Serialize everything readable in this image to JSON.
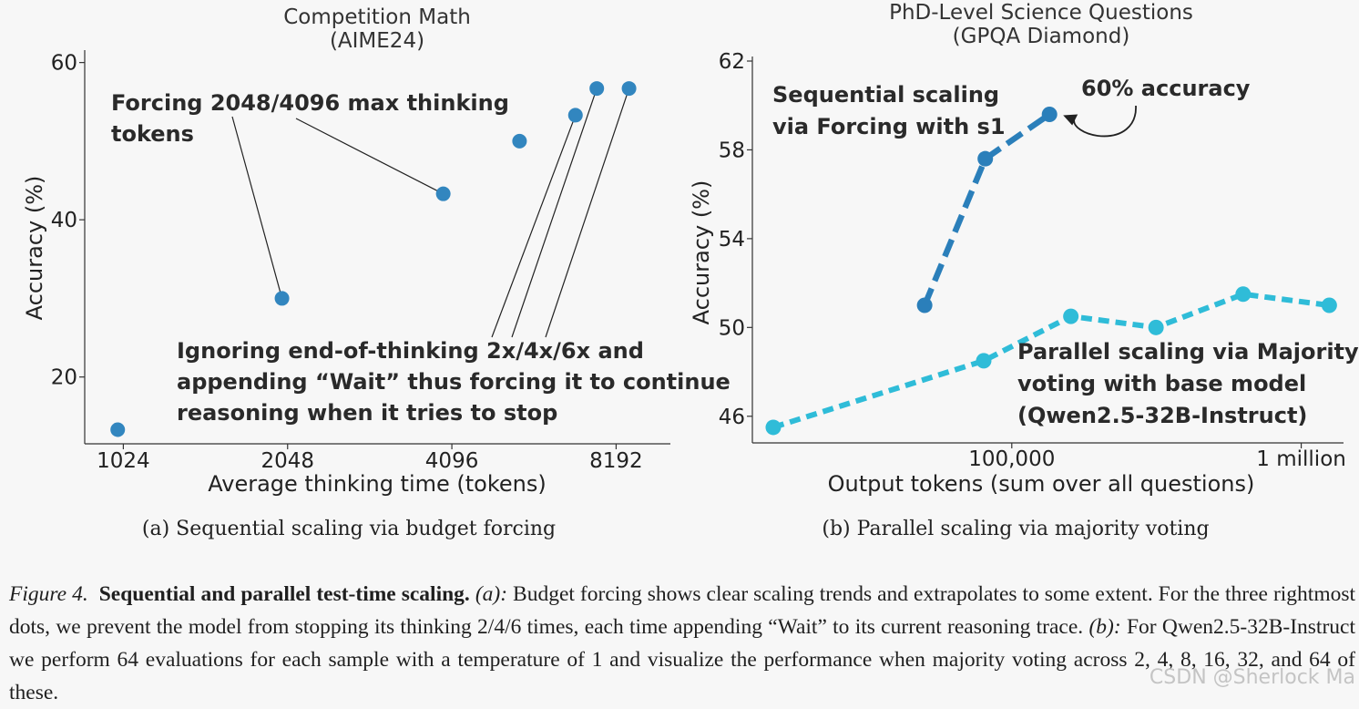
{
  "chart_data": [
    {
      "type": "scatter",
      "title": [
        "Competition Math",
        "(AIME24)"
      ],
      "xlabel": "Average thinking time (tokens)",
      "ylabel": "Accuracy (%)",
      "x_scale": "log2",
      "xlim": [
        870,
        10300
      ],
      "ylim": [
        11.5,
        61
      ],
      "xticks": [
        1024,
        2048,
        4096,
        8192
      ],
      "xtick_labels": [
        "1024",
        "2048",
        "4096",
        "8192"
      ],
      "yticks": [
        20,
        40,
        60
      ],
      "ytick_labels": [
        "20",
        "40",
        "60"
      ],
      "color": "#3286bf",
      "points": [
        {
          "x": 1000,
          "y": 13.3
        },
        {
          "x": 2000,
          "y": 30.0
        },
        {
          "x": 3950,
          "y": 43.3
        },
        {
          "x": 5450,
          "y": 50.0
        },
        {
          "x": 6900,
          "y": 53.3
        },
        {
          "x": 7550,
          "y": 56.7
        },
        {
          "x": 8650,
          "y": 56.7
        }
      ],
      "annotations": [
        {
          "lines": [
            "Forcing 2048/4096 max thinking",
            "tokens"
          ],
          "points": [
            1,
            2
          ]
        },
        {
          "lines": [
            "Ignoring end-of-thinking 2x/4x/6x and",
            "appending “Wait” thus forcing it to continue",
            "reasoning when it tries to stop"
          ],
          "points": [
            4,
            5,
            6
          ]
        }
      ],
      "subcaption": "(a)  Sequential scaling via budget forcing"
    },
    {
      "type": "line",
      "title": [
        "PhD-Level Science Questions",
        "(GPQA Diamond)"
      ],
      "xlabel": "Output tokens (sum over all questions)",
      "ylabel": "Accuracy (%)",
      "x_scale": "log10",
      "xlim": [
        12700,
        1400000
      ],
      "ylim": [
        44.8,
        62
      ],
      "xticks": [
        100000,
        1000000
      ],
      "xtick_labels": [
        "100,000",
        "1 million"
      ],
      "yticks": [
        46,
        50,
        54,
        58,
        62
      ],
      "ytick_labels": [
        "46",
        "50",
        "54",
        "58",
        "62"
      ],
      "series": [
        {
          "name": "Sequential scaling via Forcing with s1",
          "label_lines": [
            "Sequential scaling",
            "via Forcing with s1"
          ],
          "color": "#2b7fba",
          "x": [
            50000,
            81000,
            135000
          ],
          "y": [
            51.0,
            57.6,
            59.6
          ]
        },
        {
          "name": "Parallel scaling via Majority voting with base model (Qwen2.5-32B-Instruct)",
          "label_lines": [
            "Parallel scaling via Majority",
            "voting with base model",
            "(Qwen2.5-32B-Instruct)"
          ],
          "color": "#2fbcd8",
          "x": [
            15000,
            80000,
            160000,
            315000,
            630000,
            1250000
          ],
          "y": [
            45.5,
            48.5,
            50.5,
            50.0,
            51.5,
            51.0
          ]
        }
      ],
      "annotations": [
        {
          "text": "60% accuracy",
          "target_series": 0,
          "target_point": 2
        }
      ],
      "subcaption": "(b)  Parallel scaling via majority voting"
    }
  ],
  "caption": {
    "label": "Figure 4.",
    "bold": "Sequential and parallel test-time scaling.",
    "a_label": "(a):",
    "a_text": "Budget forcing shows clear scaling trends and extrapolates to some extent. For the three rightmost dots, we prevent the model from stopping its thinking 2/4/6 times, each time appending “Wait” to its current reasoning trace.",
    "b_label": "(b):",
    "b_text": "For Qwen2.5-32B-Instruct we perform 64 evaluations for each sample with a temperature of 1 and visualize the performance when majority voting across 2, 4, 8, 16, 32, and 64 of these."
  },
  "watermark": "CSDN @Sherlock  Ma"
}
